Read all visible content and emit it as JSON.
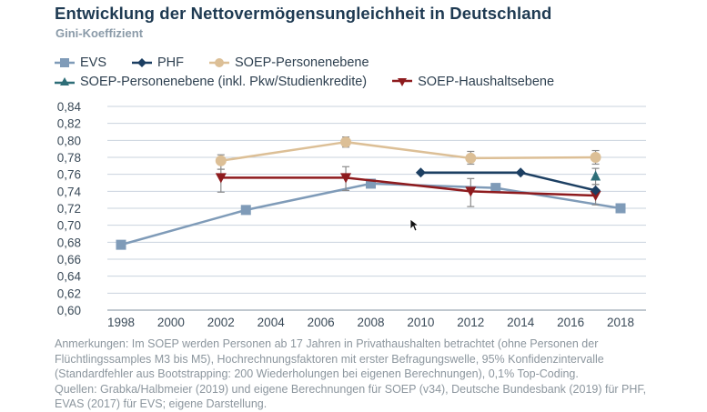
{
  "header": {
    "title": "Entwicklung der Nettovermögensungleichheit in Deutschland",
    "subtitle": "Gini-Koeffizient"
  },
  "legend": {
    "rows": [
      [
        {
          "label": "EVS",
          "series": 0
        },
        {
          "label": "PHF",
          "series": 1
        },
        {
          "label": "SOEP-Personenebene",
          "series": 2
        }
      ],
      [
        {
          "label": "SOEP-Personenebene (inkl. Pkw/Studienkredite)",
          "series": 3
        },
        {
          "label": "SOEP-Haushaltsebene",
          "series": 4
        }
      ]
    ]
  },
  "notes": {
    "lines": [
      "Anmerkungen: Im SOEP werden Personen ab 17 Jahren in Privathaushalten betrachtet (ohne Personen der",
      "Flüchtlingssamples M3 bis M5), Hochrechnungsfaktoren mit erster Befragungswelle, 95% Konfidenzintervalle",
      "(Standardfehler aus Bootstrapping: 200 Wiederholungen bei eigenen Berechnungen), 0,1% Top-Coding.",
      "Quellen: Grabka/Halbmeier (2019) und eigene Berechnungen für SOEP (v34), Deutsche Bundesbank (2019) für PHF,",
      "EVAS (2017) für EVS; eigene Darstellung."
    ]
  },
  "chart_data": {
    "type": "line",
    "title": "Entwicklung der Nettovermögensungleichheit in Deutschland",
    "subtitle": "Gini-Koeffizient",
    "xlabel": "",
    "ylabel": "Gini-Koeffizient",
    "xlim": [
      1997,
      2020
    ],
    "ylim": [
      0.6,
      0.84
    ],
    "x_ticks": [
      1998,
      2000,
      2002,
      2004,
      2006,
      2008,
      2010,
      2012,
      2014,
      2016,
      2018
    ],
    "y_ticks": [
      0.6,
      0.62,
      0.64,
      0.66,
      0.68,
      0.7,
      0.72,
      0.74,
      0.76,
      0.78,
      0.8,
      0.82,
      0.84
    ],
    "y_tick_labels": [
      "0,60",
      "0,62",
      "0,64",
      "0,66",
      "0,68",
      "0,70",
      "0,72",
      "0,74",
      "0,76",
      "0,78",
      "0,80",
      "0,82",
      "0,84"
    ],
    "grid": "horizontal",
    "legend_position": "top-left",
    "series": [
      {
        "name": "EVS",
        "color": "#7f9bb8",
        "marker": "square",
        "x": [
          1998,
          2003,
          2008,
          2013,
          2018
        ],
        "y": [
          0.677,
          0.718,
          0.749,
          0.744,
          0.72
        ]
      },
      {
        "name": "PHF",
        "color": "#1c3f62",
        "marker": "diamond",
        "x": [
          2010,
          2014,
          2017
        ],
        "y": [
          0.762,
          0.762,
          0.741
        ]
      },
      {
        "name": "SOEP-Personenebene",
        "color": "#dcbf96",
        "marker": "circle",
        "x": [
          2002,
          2007,
          2012,
          2017
        ],
        "y": [
          0.776,
          0.798,
          0.779,
          0.78
        ],
        "ci_low": [
          0.766,
          0.792,
          0.772,
          0.772
        ],
        "ci_high": [
          0.783,
          0.804,
          0.787,
          0.788
        ]
      },
      {
        "name": "SOEP-Personenebene (inkl. Pkw/Studienkredite)",
        "color": "#2e6e78",
        "marker": "triangle-up",
        "x": [
          2017
        ],
        "y": [
          0.757
        ],
        "ci_low": [
          0.748
        ],
        "ci_high": [
          0.767
        ]
      },
      {
        "name": "SOEP-Haushaltsebene",
        "color": "#8e1b1e",
        "marker": "triangle-down",
        "x": [
          2002,
          2007,
          2012,
          2017
        ],
        "y": [
          0.756,
          0.756,
          0.74,
          0.735
        ],
        "ci_low": [
          0.739,
          0.741,
          0.722,
          0.724
        ],
        "ci_high": [
          0.766,
          0.769,
          0.755,
          0.748
        ]
      }
    ]
  }
}
